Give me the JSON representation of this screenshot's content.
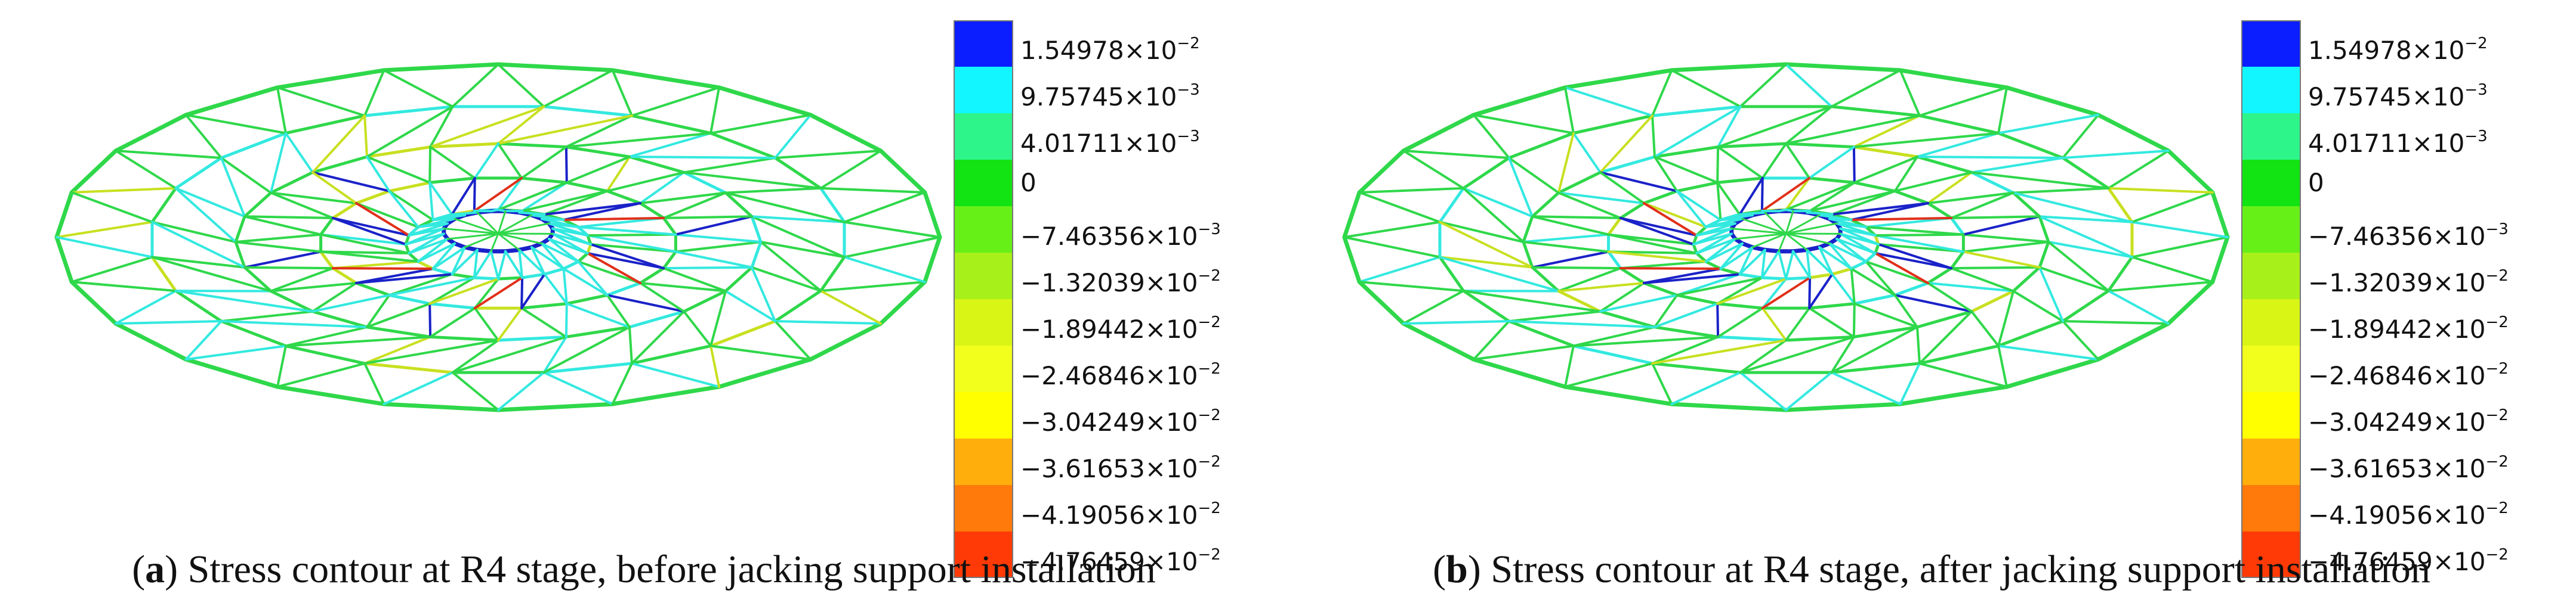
{
  "legend": {
    "entries": [
      {
        "mantissa": "1.54978",
        "exp": "−2",
        "color": "#0a1eff"
      },
      {
        "mantissa": "9.75745",
        "exp": "−3",
        "color": "#12f7ff"
      },
      {
        "mantissa": "4.01711",
        "exp": "−3",
        "color": "#2ef58a"
      },
      {
        "mantissa": "0",
        "exp": "",
        "color": "#12e312"
      },
      {
        "mantissa": "−7.46356",
        "exp": "−3",
        "color": "#66f018"
      },
      {
        "mantissa": "−1.32039",
        "exp": "−2",
        "color": "#a8f01a"
      },
      {
        "mantissa": "−1.89442",
        "exp": "−2",
        "color": "#d9f516"
      },
      {
        "mantissa": "−2.46846",
        "exp": "−2",
        "color": "#f2ff1c"
      },
      {
        "mantissa": "−3.04249",
        "exp": "−2",
        "color": "#ffff00"
      },
      {
        "mantissa": "−3.61653",
        "exp": "−2",
        "color": "#ffae0c"
      },
      {
        "mantissa": "−4.19056",
        "exp": "−2",
        "color": "#ff7a0a"
      },
      {
        "mantissa": "−4.76459",
        "exp": "−2",
        "color": "#ff3a06"
      }
    ],
    "times_symbol": "×10"
  },
  "panels": [
    {
      "id": "a",
      "letter": "a",
      "caption": ") Stress contour at R4 stage, before jacking support installation"
    },
    {
      "id": "b",
      "letter": "b",
      "caption": ") Stress contour at R4 stage, after jacking support installation"
    }
  ],
  "colors": {
    "frame_green": "#2fd84a",
    "frame_cyan": "#33e9e0",
    "frame_blue": "#1a22c8",
    "frame_red": "#e0301a",
    "frame_yellow": "#c8e020"
  }
}
